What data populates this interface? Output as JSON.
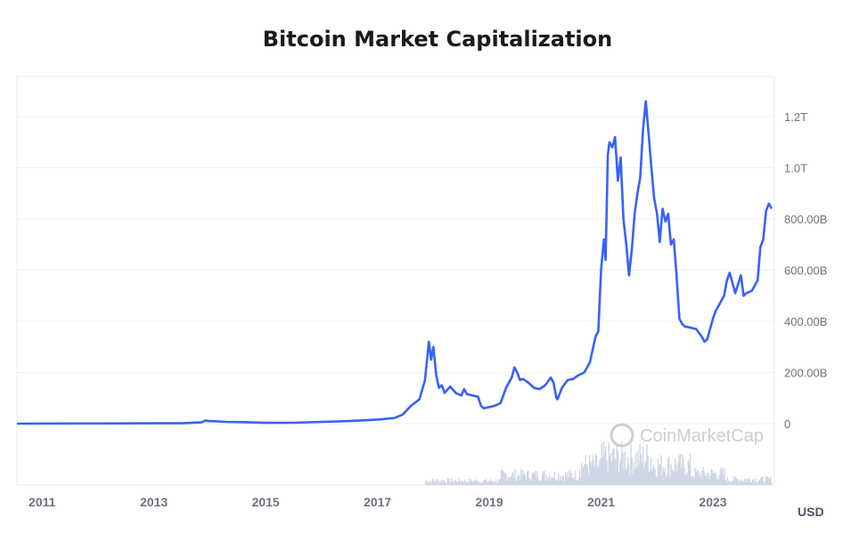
{
  "chart_data": {
    "type": "line",
    "title": "Bitcoin Market Capitalization",
    "unit_label": "USD",
    "watermark": "CoinMarketCap",
    "y_ticks": [
      "0",
      "200.00B",
      "400.00B",
      "600.00B",
      "800.00B",
      "1.0T",
      "1.2T"
    ],
    "y_tick_values": [
      0,
      200,
      400,
      600,
      800,
      1000,
      1200
    ],
    "x_ticks": [
      "2011",
      "2013",
      "2015",
      "2017",
      "2019",
      "2021",
      "2023"
    ],
    "x_tick_values": [
      2011,
      2013,
      2015,
      2017,
      2019,
      2021,
      2023
    ],
    "xlim": [
      2010.55,
      2024.1
    ],
    "ylim": [
      -240,
      1350
    ],
    "series": [
      {
        "color": "#3861fb",
        "values_unit": "billion USD",
        "x": [
          2010.55,
          2011.0,
          2011.5,
          2012.0,
          2012.5,
          2013.0,
          2013.5,
          2013.85,
          2013.92,
          2014.0,
          2014.3,
          2014.6,
          2015.0,
          2015.5,
          2016.0,
          2016.5,
          2017.0,
          2017.3,
          2017.45,
          2017.6,
          2017.75,
          2017.85,
          2017.92,
          2017.96,
          2018.0,
          2018.05,
          2018.1,
          2018.15,
          2018.2,
          2018.3,
          2018.4,
          2018.5,
          2018.55,
          2018.6,
          2018.7,
          2018.8,
          2018.85,
          2018.9,
          2019.0,
          2019.1,
          2019.2,
          2019.3,
          2019.4,
          2019.45,
          2019.5,
          2019.55,
          2019.6,
          2019.7,
          2019.8,
          2019.9,
          2020.0,
          2020.1,
          2020.15,
          2020.2,
          2020.22,
          2020.3,
          2020.4,
          2020.5,
          2020.6,
          2020.7,
          2020.8,
          2020.9,
          2020.95,
          2021.0,
          2021.05,
          2021.08,
          2021.12,
          2021.15,
          2021.2,
          2021.25,
          2021.3,
          2021.35,
          2021.4,
          2021.45,
          2021.5,
          2021.55,
          2021.6,
          2021.65,
          2021.7,
          2021.75,
          2021.8,
          2021.85,
          2021.9,
          2021.95,
          2022.0,
          2022.05,
          2022.1,
          2022.15,
          2022.2,
          2022.25,
          2022.3,
          2022.35,
          2022.4,
          2022.45,
          2022.5,
          2022.6,
          2022.7,
          2022.8,
          2022.85,
          2022.9,
          2023.0,
          2023.05,
          2023.1,
          2023.2,
          2023.25,
          2023.3,
          2023.4,
          2023.5,
          2023.55,
          2023.6,
          2023.7,
          2023.8,
          2023.85,
          2023.9,
          2023.95,
          2024.0,
          2024.05
        ],
        "values": [
          0,
          0.5,
          0.8,
          0.6,
          1,
          1.5,
          1.5,
          5,
          12,
          10,
          7,
          6,
          3,
          3.5,
          7,
          10,
          16,
          22,
          35,
          70,
          95,
          170,
          320,
          250,
          300,
          190,
          140,
          150,
          120,
          145,
          120,
          110,
          135,
          115,
          110,
          105,
          70,
          60,
          65,
          70,
          80,
          140,
          180,
          220,
          200,
          170,
          175,
          160,
          140,
          135,
          150,
          180,
          160,
          100,
          95,
          140,
          170,
          175,
          190,
          200,
          240,
          340,
          360,
          600,
          720,
          640,
          1050,
          1100,
          1080,
          1120,
          950,
          1040,
          800,
          700,
          580,
          680,
          820,
          900,
          960,
          1150,
          1260,
          1130,
          1000,
          880,
          820,
          710,
          840,
          790,
          820,
          700,
          720,
          580,
          410,
          390,
          380,
          375,
          370,
          340,
          320,
          330,
          410,
          440,
          460,
          500,
          560,
          590,
          510,
          580,
          500,
          510,
          520,
          560,
          690,
          720,
          830,
          860,
          840
        ]
      }
    ],
    "volume_bars": true,
    "grid": true
  }
}
